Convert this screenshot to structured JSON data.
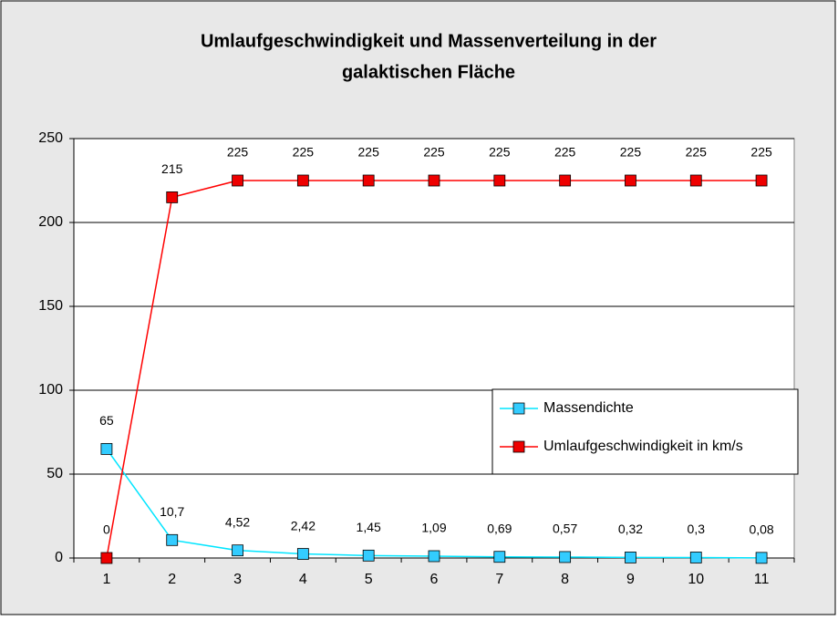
{
  "chart_data": {
    "type": "line",
    "title": [
      "Umlaufgeschwindigkeit und Massenverteilung in der",
      "galaktischen Fläche"
    ],
    "categories": [
      "1",
      "2",
      "3",
      "4",
      "5",
      "6",
      "7",
      "8",
      "9",
      "10",
      "11"
    ],
    "series": [
      {
        "name": "Massendichte",
        "color": "#00e5ff",
        "marker_color": "#33ccff",
        "values": [
          65,
          10.7,
          4.52,
          2.42,
          1.45,
          1.09,
          0.69,
          0.57,
          0.32,
          0.3,
          0.08
        ],
        "value_labels": [
          "65",
          "10,7",
          "4,52",
          "2,42",
          "1,45",
          "1,09",
          "0,69",
          "0,57",
          "0,32",
          "0,3",
          "0,08"
        ]
      },
      {
        "name": "Umlaufgeschwindigkeit in km/s",
        "color": "#ff0000",
        "marker_color": "#ee0000",
        "values": [
          0,
          215,
          225,
          225,
          225,
          225,
          225,
          225,
          225,
          225,
          225
        ]
      }
    ],
    "ylim": [
      0,
      250
    ],
    "yticks": [
      0,
      50,
      100,
      150,
      200,
      250
    ],
    "grid": true,
    "legend_position": "right"
  }
}
